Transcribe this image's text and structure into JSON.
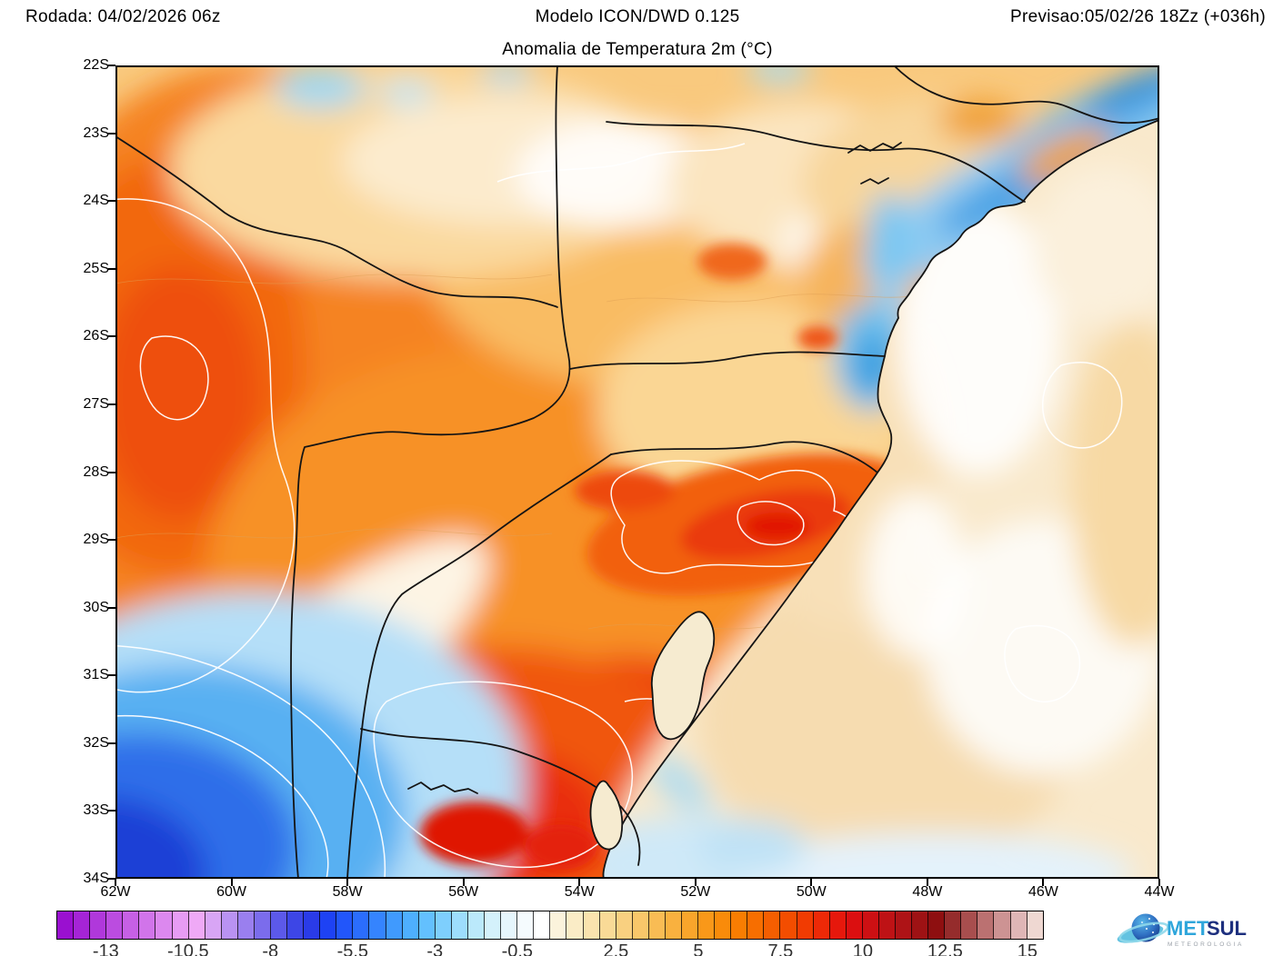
{
  "header": {
    "run_label": "Rodada: 04/02/2026 06z",
    "model_label": "Modelo ICON/DWD 0.125",
    "forecast_label": "Previsao:05/02/26 18Zz (+036h)"
  },
  "map": {
    "title": "Anomalia de Temperatura 2m (°C)",
    "lat_ticks": [
      "22S",
      "23S",
      "24S",
      "25S",
      "26S",
      "27S",
      "28S",
      "29S",
      "30S",
      "31S",
      "32S",
      "33S",
      "34S"
    ],
    "lon_ticks": [
      "62W",
      "60W",
      "58W",
      "56W",
      "54W",
      "52W",
      "50W",
      "48W",
      "46W",
      "44W"
    ]
  },
  "colorbar": {
    "range_min": -14.5,
    "range_max": 15.5,
    "step": 0.5,
    "tick_labels": [
      "-13",
      "-10.5",
      "-8",
      "-5.5",
      "-3",
      "-0.5",
      "2.5",
      "5",
      "7.5",
      "10",
      "12.5",
      "15"
    ],
    "tick_values": [
      -13,
      -10.5,
      -8,
      -5.5,
      -3,
      -0.5,
      2.5,
      5,
      7.5,
      10,
      12.5,
      15
    ],
    "segment_colors": [
      "#9A10D0",
      "#A524D6",
      "#B038DB",
      "#BB4CE0",
      "#C660E5",
      "#D174EA",
      "#DC88EF",
      "#E79CF4",
      "#EFA9F6",
      "#D8A5F5",
      "#B992F2",
      "#9A7FEF",
      "#7B6CEC",
      "#5C59E9",
      "#3D46E6",
      "#2A3BE8",
      "#1E42F4",
      "#2256FA",
      "#2B6DFD",
      "#3584FE",
      "#409AFE",
      "#4EAFFE",
      "#63C0FE",
      "#7ECFFD",
      "#9DDDFC",
      "#BBE9FB",
      "#D4F1FB",
      "#E6F6FC",
      "#F5FBFE",
      "#FFFFFF",
      "#FBF3DC",
      "#FAECC6",
      "#FAE3AE",
      "#F9DA97",
      "#F9D080",
      "#F9C76A",
      "#F9BC54",
      "#F9B13F",
      "#F9A52B",
      "#F99819",
      "#F98B0A",
      "#F87D02",
      "#F76E00",
      "#F55E00",
      "#F34D00",
      "#F13B02",
      "#ED2907",
      "#E6180C",
      "#DB0F10",
      "#CD1013",
      "#BE1215",
      "#AE1316",
      "#9E1214",
      "#8E0F10",
      "#952C2C",
      "#A84E4E",
      "#BB7171",
      "#CD9393",
      "#DFB6B6",
      "#EFD8D2"
    ]
  },
  "logo": {
    "brand_met": "MET",
    "brand_sul": "SUL",
    "subtitle": "METEOROLOGIA",
    "met_color": "#2FA6DB",
    "sul_color": "#1D2F7E"
  },
  "map_data": {
    "type": "filled_contour_map",
    "variable": "Anomalia de Temperatura 2m (°C)",
    "model": "ICON/DWD 0.125",
    "run": "04/02/2026 06z",
    "valid": "05/02/26 18Zz (+036h)",
    "lat_extent": [
      "22S",
      "34S"
    ],
    "lon_extent": [
      "62W",
      "44W"
    ],
    "features": [
      {
        "area": "far southwest (NE Argentina, ~60W 33S)",
        "anomaly_c": "-3 to -9 (cold pool)"
      },
      {
        "area": "Paraguay / western sector (~60W 26S)",
        "anomaly_c": "+5 to +7"
      },
      {
        "area": "central-east Rio Grande do Sul (~51W 29S)",
        "anomaly_c": "+8 to +10 (warm maximum)"
      },
      {
        "area": "southern RS / interior Uruguay (~55W 33S)",
        "anomaly_c": "+7 to +9"
      },
      {
        "area": "Serra do Mar coast SP/RJ (~46W 23.5S)",
        "anomaly_c": "-1 to -4 (cool band)"
      },
      {
        "area": "Atlantic offshore",
        "anomaly_c": "-0.5 to +2.5 (near neutral)"
      }
    ]
  }
}
